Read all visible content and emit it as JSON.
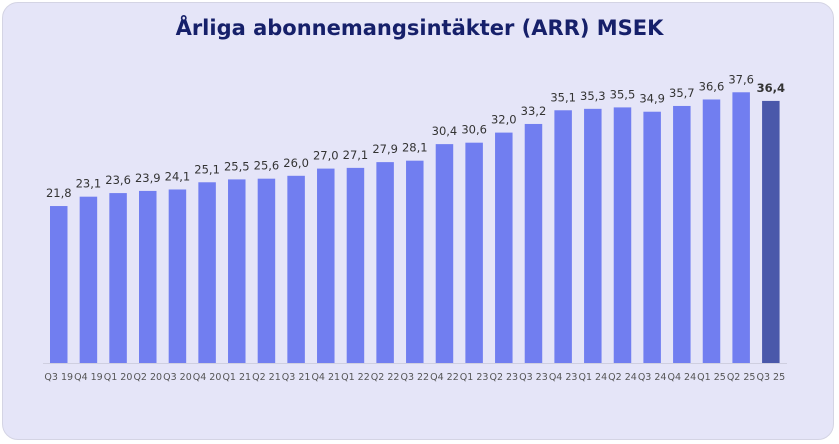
{
  "chart_data": {
    "type": "bar",
    "title": "Årliga abonnemangsintäkter (ARR) MSEK",
    "categories": [
      "Q3 19",
      "Q4 19",
      "Q1 20",
      "Q2 20",
      "Q3 20",
      "Q4 20",
      "Q1 21",
      "Q2 21",
      "Q3 21",
      "Q4 21",
      "Q1 22",
      "Q2 22",
      "Q3 22",
      "Q4 22",
      "Q1 23",
      "Q2 23",
      "Q3 23",
      "Q4 23",
      "Q1 24",
      "Q2 24",
      "Q3 24",
      "Q4 24",
      "Q1 25",
      "Q2 25",
      "Q3 25"
    ],
    "values": [
      21.8,
      23.1,
      23.6,
      23.9,
      24.1,
      25.1,
      25.5,
      25.6,
      26.0,
      27.0,
      27.1,
      27.9,
      28.1,
      30.4,
      30.6,
      32.0,
      33.2,
      35.1,
      35.3,
      35.5,
      34.9,
      35.7,
      36.6,
      37.6,
      36.4
    ],
    "data_labels": [
      "21,8",
      "23,1",
      "23,6",
      "23,9",
      "24,1",
      "25,1",
      "25,5",
      "25,6",
      "26,0",
      "27,0",
      "27,1",
      "27,9",
      "28,1",
      "30,4",
      "30,6",
      "32,0",
      "33,2",
      "35,1",
      "35,3",
      "35,5",
      "34,9",
      "35,7",
      "36,6",
      "37,6",
      "36,4"
    ],
    "highlight_index": 24,
    "xlabel": "",
    "ylabel": "",
    "ylim": [
      0,
      40
    ],
    "grid": false,
    "colors": {
      "bar": "#717ef0",
      "highlight": "#4a58aa",
      "title": "#16206a",
      "background": "#e5e5f8"
    }
  }
}
